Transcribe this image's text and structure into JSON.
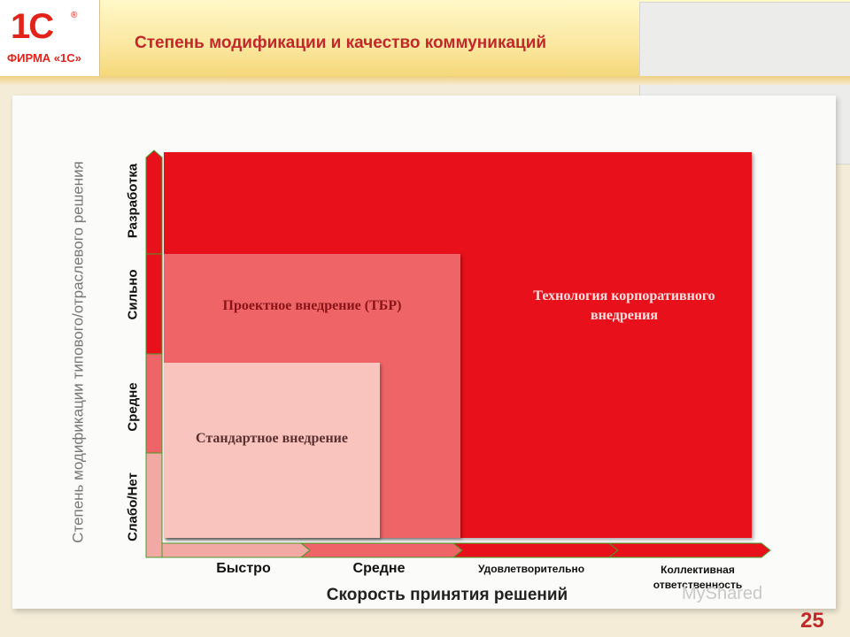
{
  "header": {
    "logo_mark": "1С",
    "logo_reg": "®",
    "logo_text": "ФИРМА «1С»",
    "title": "Степень модификации и качество коммуникаций"
  },
  "diagram": {
    "y_axis_title": "Степень модификации типового/отраслевого решения",
    "y_levels": [
      "Слабо/Нет",
      "Средне",
      "Сильно",
      "Разработка"
    ],
    "x_axis_title": "Скорость принятия решений",
    "x_levels": [
      "Быстро",
      "Средне",
      "Удовлетворительно",
      "Коллективная ответственность"
    ],
    "regions": [
      {
        "name": "Технология корпоративного внедрения",
        "color": "#e8101a"
      },
      {
        "name": "Проектное внедрение (ТБР)",
        "color": "#ef6466"
      },
      {
        "name": "Стандартное внедрение",
        "color": "#f8c4bd"
      }
    ]
  },
  "watermark": "MyShared",
  "page_number": "25"
}
